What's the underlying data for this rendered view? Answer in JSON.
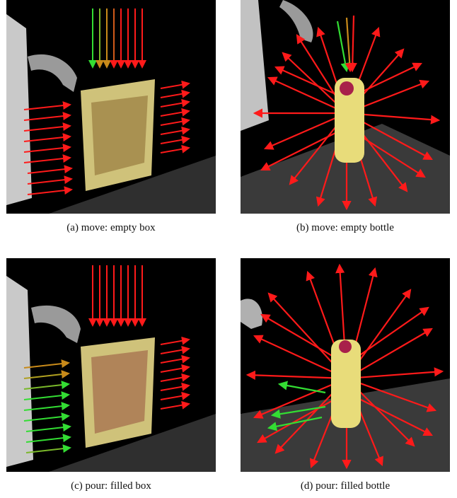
{
  "figure": {
    "panels": [
      {
        "id": "a",
        "caption": "(a) move: empty box"
      },
      {
        "id": "b",
        "caption": "(b) move: empty bottle"
      },
      {
        "id": "c",
        "caption": "(c) pour: filled box"
      },
      {
        "id": "d",
        "caption": "(d) pour: filled bottle"
      }
    ]
  },
  "colors": {
    "force_red": "#ff1a1a",
    "force_green": "#33dd33",
    "force_orange": "#c88a1a",
    "object_points": "#e8dc7a",
    "table": "#3a3a3a",
    "robot": "#bdbdbd"
  }
}
